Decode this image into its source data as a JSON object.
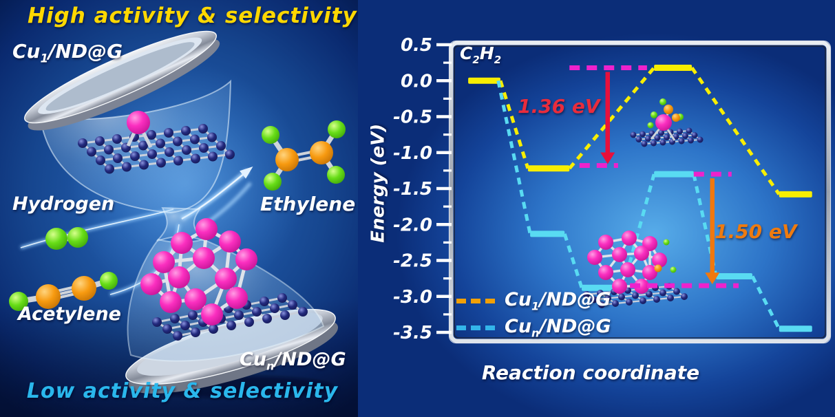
{
  "left_panel": {
    "title_top": "High activity & selectivity",
    "title_bottom": "Low activity & selectivity",
    "label_hydrogen": "Hydrogen",
    "label_acetylene": "Acetylene",
    "label_ethylene": "Ethylene",
    "label_single_site": [
      {
        "t": "Cu"
      },
      {
        "t": "1",
        "sub": true
      },
      {
        "t": "/ND@G"
      }
    ],
    "label_cluster": [
      {
        "t": "Cu"
      },
      {
        "t": "n",
        "sub": true
      },
      {
        "t": "/ND@G"
      }
    ],
    "colors": {
      "title_top": "#ffd800",
      "title_bottom": "#2ab7ec",
      "hydrogen_ball": "#5ed615",
      "carbon_ball": "#f49104",
      "copper_ball": "#f818b6",
      "graphene_ball": "#1c2275"
    }
  },
  "chart_data": {
    "type": "line",
    "title": "",
    "xlabel": "Reaction coordinate",
    "ylabel": "Energy (eV)",
    "start_label": [
      {
        "t": "C"
      },
      {
        "t": "2",
        "sub": true
      },
      {
        "t": "H"
      },
      {
        "t": "2",
        "sub": true
      }
    ],
    "ylim": [
      -3.5,
      0.5
    ],
    "ytick_major": [
      {
        "v": 0.5,
        "label": "0.5"
      },
      {
        "v": 0.0,
        "label": "0.0"
      },
      {
        "v": -0.5,
        "label": "-0.5"
      },
      {
        "v": -1.0,
        "label": "-1.0"
      },
      {
        "v": -1.5,
        "label": "-1.5"
      },
      {
        "v": -2.0,
        "label": "-2.0"
      },
      {
        "v": -2.5,
        "label": "-2.5"
      },
      {
        "v": -3.0,
        "label": "-3.0"
      },
      {
        "v": -3.5,
        "label": "-3.5"
      }
    ],
    "ytick_minor_step": 0.25,
    "grid": false,
    "legend_position": "bottom-left",
    "series": [
      {
        "name": "Cu1/ND@G",
        "legend": [
          {
            "t": "Cu"
          },
          {
            "t": "1",
            "sub": true
          },
          {
            "t": "/ND@G"
          }
        ],
        "color": "#f8ee00",
        "legend_color": "#f2a007",
        "levels": [
          {
            "x0": 0.041,
            "x1": 0.128,
            "e": 0.0
          },
          {
            "x0": 0.202,
            "x1": 0.314,
            "e": -1.22
          },
          {
            "x0": 0.542,
            "x1": 0.644,
            "e": 0.18
          },
          {
            "x0": 0.879,
            "x1": 0.968,
            "e": -1.58
          }
        ]
      },
      {
        "name": "Cun/ND@G",
        "legend": [
          {
            "t": "Cu"
          },
          {
            "t": "n",
            "sub": true
          },
          {
            "t": "/ND@G"
          }
        ],
        "color": "#59dbf2",
        "legend_color": "#33b5ea",
        "levels": [
          {
            "x0": 0.041,
            "x1": 0.122,
            "e": 0.0,
            "draw": false
          },
          {
            "x0": 0.208,
            "x1": 0.301,
            "e": -2.13
          },
          {
            "x0": 0.347,
            "x1": 0.458,
            "e": -2.88
          },
          {
            "x0": 0.542,
            "x1": 0.649,
            "e": -1.3
          },
          {
            "x0": 0.709,
            "x1": 0.807,
            "e": -2.72
          },
          {
            "x0": 0.879,
            "x1": 0.968,
            "e": -3.45
          }
        ]
      }
    ],
    "ts_markers": {
      "color": "#ee22cc",
      "segments": [
        {
          "x0": 0.314,
          "x1": 0.523,
          "e": 0.18
        },
        {
          "x0": 0.341,
          "x1": 0.445,
          "e": -1.18
        },
        {
          "x0": 0.649,
          "x1": 0.751,
          "e": -1.3
        },
        {
          "x0": 0.477,
          "x1": 0.77,
          "e": -2.85
        }
      ]
    },
    "arrows": [
      {
        "x": 0.417,
        "e_from": 0.18,
        "e_to": -1.18,
        "barrier_eV": 1.36,
        "color": "#e8103c",
        "label": "1.36 eV",
        "label_color": "#e92c3c"
      },
      {
        "x": 0.699,
        "e_from": -1.3,
        "e_to": -2.85,
        "barrier_eV": 1.5,
        "color": "#f0780f",
        "label": "1.50 eV",
        "label_color": "#ee7b10"
      }
    ]
  }
}
